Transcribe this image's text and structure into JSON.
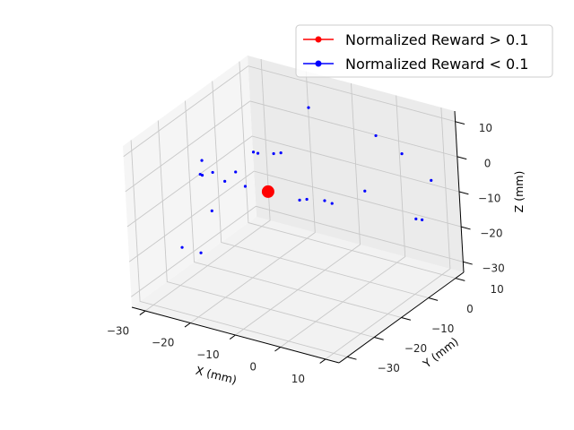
{
  "chart_data": {
    "type": "scatter",
    "projection": "3d",
    "title": "",
    "xlabel": "X (mm)",
    "ylabel": "Y (mm)",
    "zlabel": "Z (mm)",
    "xlim": [
      -33,
      13
    ],
    "ylim": [
      -33,
      13
    ],
    "zlim": [
      -33,
      13
    ],
    "xticks": [
      -30,
      -20,
      -10,
      0,
      10
    ],
    "yticks": [
      -30,
      -20,
      -10,
      0,
      10
    ],
    "zticks": [
      -30,
      -20,
      -10,
      0,
      10
    ],
    "grid": true,
    "legend_position": "top-right",
    "series": [
      {
        "name": "Normalized Reward > 0.1",
        "color": "#ff0000",
        "marker": "large-circle",
        "points": [
          {
            "x": -18,
            "y": -6,
            "z": -10
          }
        ]
      },
      {
        "name": "Normalized Reward < 0.1",
        "color": "#0000ff",
        "marker": "small-dot",
        "points": [
          {
            "x": -18,
            "y": 10,
            "z": 5
          },
          {
            "x": -15,
            "y": -30,
            "z": 10
          },
          {
            "x": -13,
            "y": -25,
            "z": 8
          },
          {
            "x": -30,
            "y": -10,
            "z": -3
          },
          {
            "x": -28,
            "y": -14,
            "z": -4
          },
          {
            "x": -25,
            "y": -20,
            "z": -22
          },
          {
            "x": -20,
            "y": -18,
            "z": -1
          },
          {
            "x": -17,
            "y": -12,
            "z": 5
          },
          {
            "x": -16,
            "y": -12,
            "z": 5
          },
          {
            "x": -15,
            "y": -8,
            "z": 3
          },
          {
            "x": -14,
            "y": -7,
            "z": 3
          },
          {
            "x": -18,
            "y": -14,
            "z": -4
          },
          {
            "x": -22,
            "y": -20,
            "z": -9
          },
          {
            "x": -11,
            "y": -6,
            "z": -10
          },
          {
            "x": -10,
            "y": -5,
            "z": -10
          },
          {
            "x": -6,
            "y": -5,
            "z": -9
          },
          {
            "x": -5,
            "y": -4,
            "z": -10
          },
          {
            "x": 0,
            "y": 0,
            "z": -7
          },
          {
            "x": 0,
            "y": 5,
            "z": 6
          },
          {
            "x": 5,
            "y": 6,
            "z": 2
          },
          {
            "x": 10,
            "y": 8,
            "z": -5
          },
          {
            "x": 8,
            "y": 5,
            "z": -15
          },
          {
            "x": 10,
            "y": 4,
            "z": -14
          },
          {
            "x": -25,
            "y": -18,
            "z": -1
          },
          {
            "x": -26,
            "y": -25,
            "z": -18
          }
        ]
      }
    ]
  }
}
